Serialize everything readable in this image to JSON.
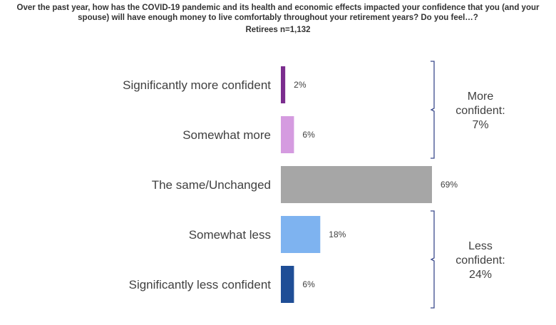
{
  "header": {
    "title": "Over the past year, how has the COVID-19 pandemic and its health and economic effects impacted your confidence that you (and your spouse) will have enough money to live comfortably throughout your retirement years? Do you feel…?",
    "subtitle": "Retirees n=1,132"
  },
  "chart_data": {
    "type": "bar",
    "orientation": "horizontal",
    "title": "Over the past year, how has the COVID-19 pandemic and its health and economic effects impacted your confidence that you (and your spouse) will have enough money to live comfortably throughout your retirement years? Do you feel…?",
    "subtitle": "Retirees n=1,132",
    "categories": [
      "Significantly more confident",
      "Somewhat more",
      "The same/Unchanged",
      "Somewhat less",
      "Significantly less confident"
    ],
    "values": [
      2,
      6,
      69,
      18,
      6
    ],
    "value_labels": [
      "2%",
      "6%",
      "69%",
      "18%",
      "6%"
    ],
    "colors": [
      "#7B2D8E",
      "#D59BE0",
      "#A6A6A6",
      "#7EB3F0",
      "#1F4E96"
    ],
    "xlim": [
      0,
      69
    ],
    "grid": false,
    "legend": "none",
    "groups": [
      {
        "label_lines": [
          "More",
          "confident:",
          "7%"
        ],
        "from_index": 0,
        "to_index": 1
      },
      {
        "label_lines": [
          "Less",
          "confident:",
          "24%"
        ],
        "from_index": 3,
        "to_index": 4
      }
    ],
    "bracket_color": "#3B4A8C"
  }
}
